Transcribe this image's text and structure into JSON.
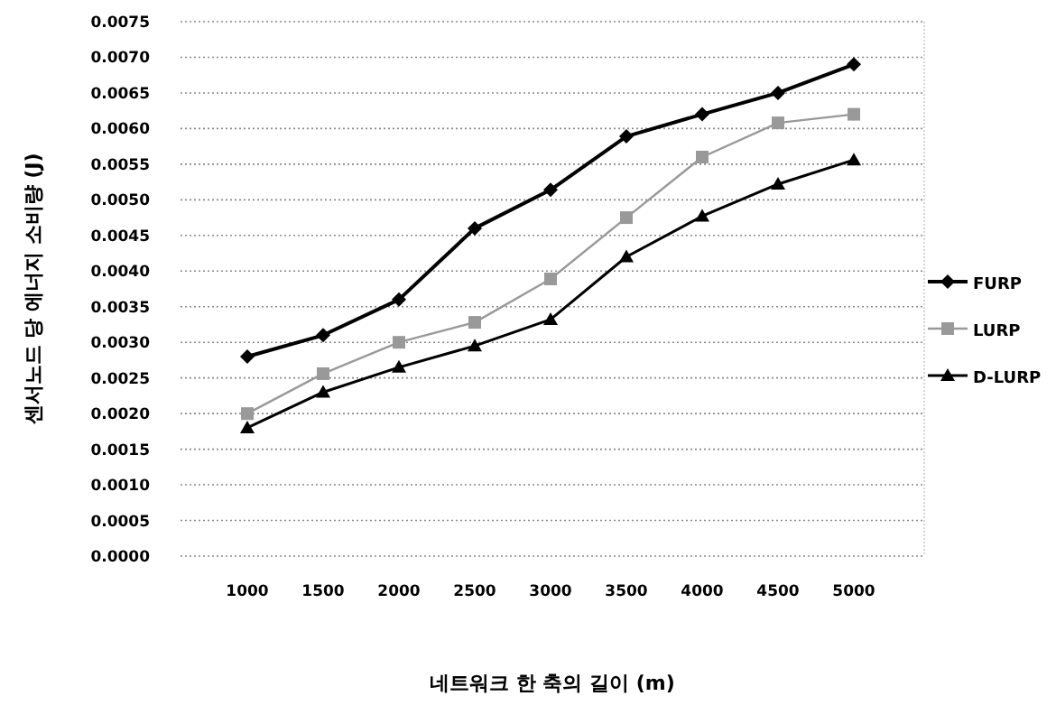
{
  "chart_data": {
    "type": "line",
    "xlabel": "네트워크 한 축의 길이 (m)",
    "ylabel": "센서노드 당 에너지 소비량 (J)",
    "categories": [
      "1000",
      "1500",
      "2000",
      "2500",
      "3000",
      "3500",
      "4000",
      "4500",
      "5000"
    ],
    "series": [
      {
        "name": "FURP",
        "color": "#000000",
        "marker": "diamond",
        "values": [
          0.0028,
          0.0031,
          0.0036,
          0.0046,
          0.00514,
          0.00589,
          0.0062,
          0.0065,
          0.0069
        ]
      },
      {
        "name": "LURP",
        "color": "#999999",
        "marker": "square",
        "values": [
          0.002,
          0.00256,
          0.003,
          0.00328,
          0.00389,
          0.00475,
          0.0056,
          0.00608,
          0.0062
        ]
      },
      {
        "name": "D-LURP",
        "color": "#000000",
        "marker": "triangle",
        "values": [
          0.0018,
          0.0023,
          0.00265,
          0.00295,
          0.00332,
          0.0042,
          0.00477,
          0.00522,
          0.00556
        ]
      }
    ],
    "ylim": [
      0,
      0.0075
    ],
    "yticks": [
      {
        "value": 0,
        "label": "0.0000"
      },
      {
        "value": 0.0005,
        "label": "0.0005"
      },
      {
        "value": 0.001,
        "label": "0.0010"
      },
      {
        "value": 0.0015,
        "label": "0.0015"
      },
      {
        "value": 0.002,
        "label": "0.0020"
      },
      {
        "value": 0.0025,
        "label": "0.0025"
      },
      {
        "value": 0.003,
        "label": "0.0030"
      },
      {
        "value": 0.0035,
        "label": "0.0035"
      },
      {
        "value": 0.004,
        "label": "0.0040"
      },
      {
        "value": 0.0045,
        "label": "0.0045"
      },
      {
        "value": 0.005,
        "label": "0.0050"
      },
      {
        "value": 0.0055,
        "label": "0.0055"
      },
      {
        "value": 0.006,
        "label": "0.0060"
      },
      {
        "value": 0.0065,
        "label": "0.0065"
      },
      {
        "value": 0.007,
        "label": "0.0070"
      },
      {
        "value": 0.0075,
        "label": "0.0075"
      }
    ],
    "grid": "y",
    "legend": "right",
    "line_style": "solid"
  }
}
